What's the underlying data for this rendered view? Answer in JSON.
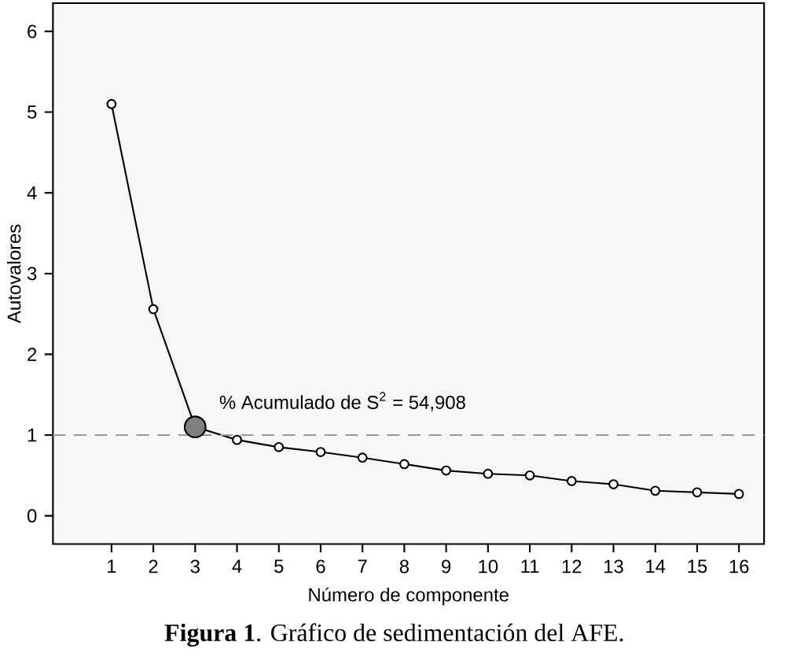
{
  "chart_data": {
    "type": "line",
    "title": "**Figura 1**. Gráfico de sedimentación del AFE.",
    "xlabel": "Número de componente",
    "ylabel": "Autovalores",
    "x": [
      1,
      2,
      3,
      4,
      5,
      6,
      7,
      8,
      9,
      10,
      11,
      12,
      13,
      14,
      15,
      16
    ],
    "series": [
      {
        "color": "#000000",
        "values": [
          5.1,
          2.56,
          1.1,
          0.94,
          0.85,
          0.79,
          0.72,
          0.64,
          0.56,
          0.52,
          0.5,
          0.43,
          0.39,
          0.31,
          0.29,
          0.27
        ],
        "marker": "circle"
      },
      {
        "type": "scatter",
        "color": "#808080",
        "x": [
          3
        ],
        "values": [
          1.1
        ],
        "marker": "circle"
      }
    ],
    "xlim": [
      -0.4,
      16.6
    ],
    "ylim": [
      -0.35,
      6.35
    ],
    "xticks": [
      1,
      2,
      3,
      4,
      5,
      6,
      7,
      8,
      9,
      10,
      11,
      12,
      13,
      14,
      15,
      16
    ],
    "yticks": [
      0,
      1,
      2,
      3,
      4,
      5,
      6
    ],
    "ref_lines": [
      {
        "axis": "y",
        "value": 1,
        "color": "#999999",
        "line_style": "dashed"
      }
    ],
    "annotations": [
      {
        "text": "% Acumulado de S$^{2}$ = 54,908",
        "x": 3,
        "y": 1.1
      }
    ],
    "grid": false,
    "line_style": "solid"
  }
}
